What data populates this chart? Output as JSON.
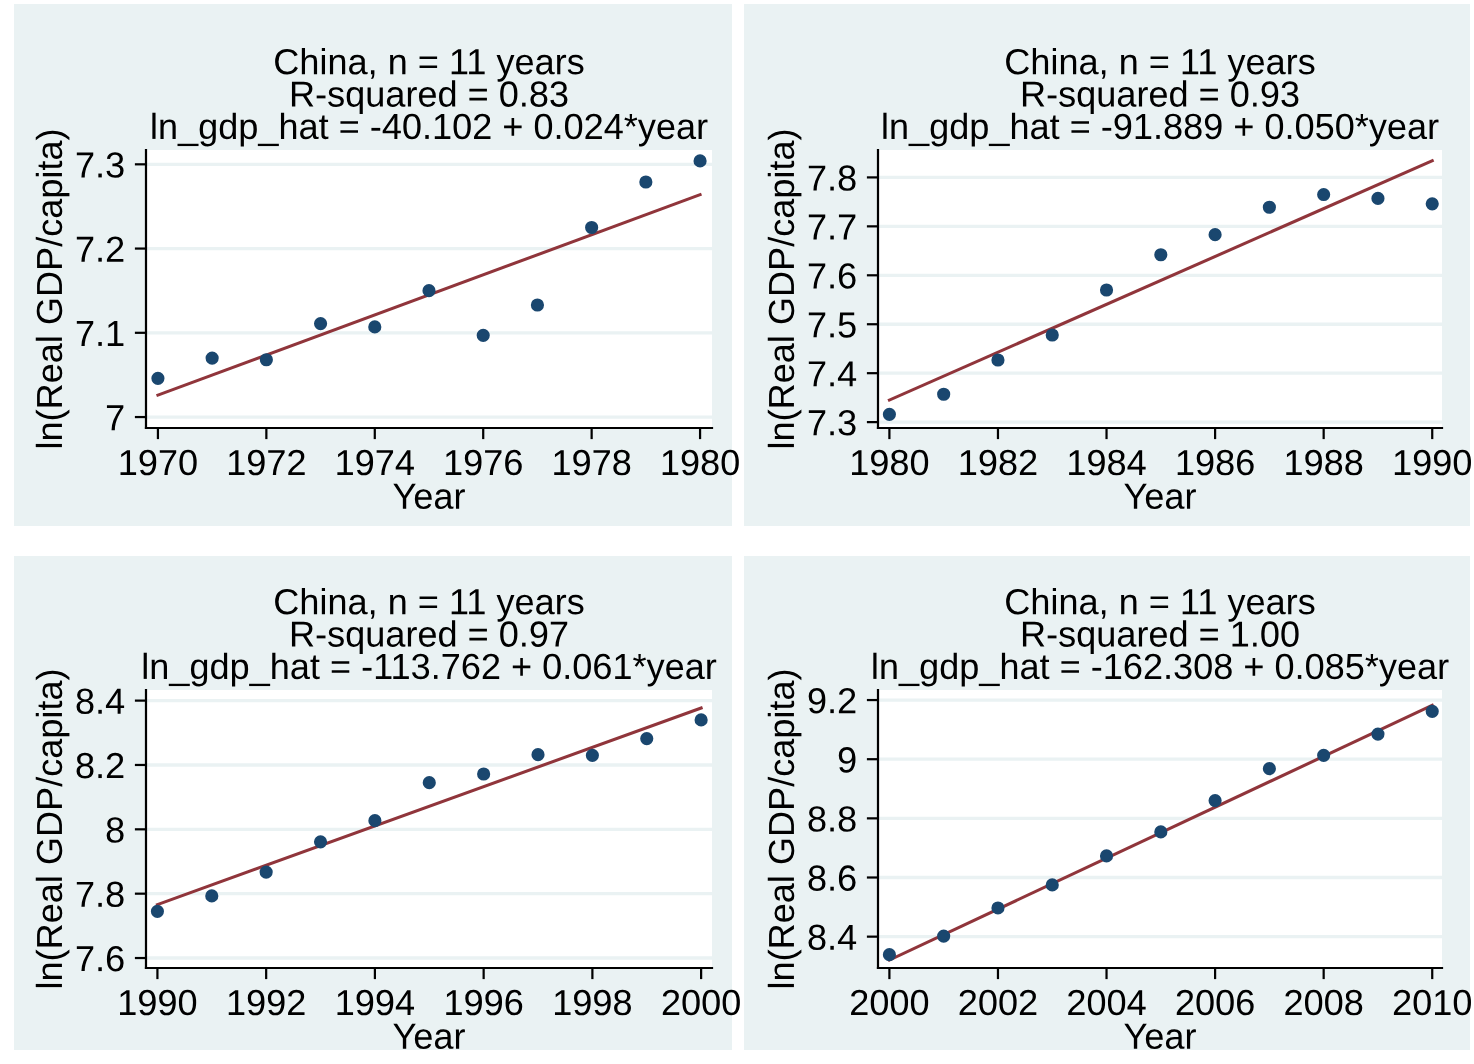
{
  "chart_data": [
    {
      "type": "scatter",
      "title": "China, n = 11 years\nR-squared = 0.83\nln_gdp_hat = -40.102 + 0.024*year",
      "xlabel": "Year",
      "ylabel": "ln(Real GDP/capita)",
      "xlim": [
        1969.78,
        1980.22
      ],
      "xticks": [
        1970,
        1972,
        1974,
        1976,
        1978,
        1980
      ],
      "ylim": [
        6.987,
        7.317
      ],
      "yticks": [
        {
          "value": 7.0,
          "label": "7"
        },
        7.1,
        7.2,
        7.3
      ],
      "grid": "y",
      "series": [
        {
          "marker": "circle",
          "color": "#1a476f",
          "x": [
            1970,
            1971,
            1972,
            1973,
            1974,
            1975,
            1976,
            1977,
            1978,
            1979,
            1980
          ],
          "values": [
            7.046,
            7.07,
            7.068,
            7.111,
            7.107,
            7.15,
            7.097,
            7.133,
            7.225,
            7.279,
            7.304
          ]
        },
        {
          "type": "line",
          "color": "#90353b",
          "x": [
            1970,
            1980
          ],
          "values": [
            7.026,
            7.264
          ]
        }
      ]
    },
    {
      "type": "scatter",
      "title": "China, n = 11 years\nR-squared = 0.93\nln_gdp_hat = -91.889 + 0.050*year",
      "xlabel": "Year",
      "ylabel": "ln(Real GDP/capita)",
      "xlim": [
        1979.79,
        1990.18
      ],
      "xticks": [
        1980,
        1982,
        1984,
        1986,
        1988,
        1990
      ],
      "ylim": [
        7.288,
        7.856
      ],
      "yticks": [
        7.3,
        7.4,
        7.5,
        7.6,
        7.7,
        7.8
      ],
      "grid": "y",
      "series": [
        {
          "marker": "circle",
          "color": "#1a476f",
          "x": [
            1980,
            1981,
            1982,
            1983,
            1984,
            1985,
            1986,
            1987,
            1988,
            1989,
            1990
          ],
          "values": [
            7.316,
            7.357,
            7.427,
            7.478,
            7.57,
            7.642,
            7.683,
            7.739,
            7.765,
            7.757,
            7.746
          ]
        },
        {
          "type": "line",
          "color": "#90353b",
          "x": [
            1980,
            1990
          ],
          "values": [
            7.345,
            7.834
          ]
        }
      ]
    },
    {
      "type": "scatter",
      "title": "China, n = 11 years\nR-squared = 0.97\nln_gdp_hat = -113.762 + 0.061*year",
      "xlabel": "Year",
      "ylabel": "ln(Real GDP/capita)",
      "xlim": [
        1989.79,
        2000.2
      ],
      "xticks": [
        1990,
        1992,
        1994,
        1996,
        1998,
        2000
      ],
      "ylim": [
        7.569,
        8.433
      ],
      "yticks": [
        7.6,
        7.8,
        {
          "value": 8.0,
          "label": "8"
        },
        8.2,
        8.4
      ],
      "grid": "y",
      "series": [
        {
          "marker": "circle",
          "color": "#1a476f",
          "x": [
            1990,
            1991,
            1992,
            1993,
            1994,
            1995,
            1996,
            1997,
            1998,
            1999,
            2000
          ],
          "values": [
            7.745,
            7.793,
            7.867,
            7.961,
            8.027,
            8.145,
            8.172,
            8.232,
            8.23,
            8.282,
            8.34
          ]
        },
        {
          "type": "line",
          "color": "#90353b",
          "x": [
            1990,
            2000
          ],
          "values": [
            7.766,
            8.377
          ]
        }
      ]
    },
    {
      "type": "scatter",
      "title": "China, n = 11 years\nR-squared = 1.00\nln_gdp_hat = -162.308 + 0.085*year",
      "xlabel": "Year",
      "ylabel": "ln(Real GDP/capita)",
      "xlim": [
        1999.79,
        2010.18
      ],
      "xticks": [
        2000,
        2002,
        2004,
        2006,
        2008,
        2010
      ],
      "ylim": [
        8.294,
        9.234
      ],
      "yticks": [
        8.4,
        8.6,
        8.8,
        {
          "value": 9.0,
          "label": "9"
        },
        9.2
      ],
      "grid": "y",
      "series": [
        {
          "marker": "circle",
          "color": "#1a476f",
          "x": [
            2000,
            2001,
            2002,
            2003,
            2004,
            2005,
            2006,
            2007,
            2008,
            2009,
            2010
          ],
          "values": [
            8.339,
            8.402,
            8.497,
            8.575,
            8.673,
            8.754,
            8.86,
            8.968,
            9.013,
            9.085,
            9.162
          ]
        },
        {
          "type": "line",
          "color": "#90353b",
          "x": [
            2000,
            2010
          ],
          "values": [
            8.321,
            9.182
          ]
        }
      ]
    }
  ]
}
